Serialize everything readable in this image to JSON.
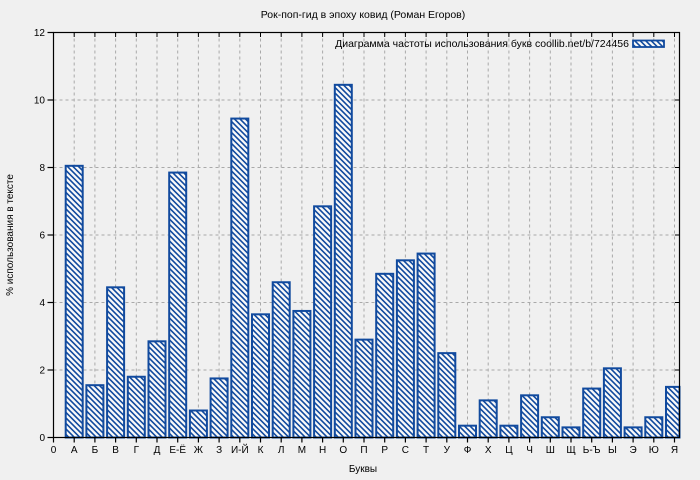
{
  "chart_data": {
    "type": "bar",
    "title": "Рок-поп-гид в эпоху ковид (Роман Егоров)",
    "legend_label": "Диаграмма частоты использования букв coollib.net/b/724456",
    "legend_position": "top-right-inside",
    "xlabel": "Буквы",
    "ylabel": "% использования в тексте",
    "x_origin_tick_label": "0",
    "ylim": [
      0,
      12
    ],
    "yticks": [
      0,
      2,
      4,
      6,
      8,
      10,
      12
    ],
    "grid": true,
    "bar_style": "blue-diagonal-hatch",
    "categories": [
      "А",
      "Б",
      "В",
      "Г",
      "Д",
      "Е-Ё",
      "Ж",
      "З",
      "И-Й",
      "К",
      "Л",
      "М",
      "Н",
      "О",
      "П",
      "Р",
      "С",
      "Т",
      "У",
      "Ф",
      "Х",
      "Ц",
      "Ч",
      "Ш",
      "Щ",
      "Ь-Ъ",
      "Ы",
      "Э",
      "Ю",
      "Я"
    ],
    "values": [
      8.05,
      1.55,
      4.45,
      1.8,
      2.85,
      7.85,
      0.8,
      1.75,
      9.45,
      3.65,
      4.6,
      3.75,
      6.85,
      10.45,
      2.9,
      4.85,
      5.25,
      5.45,
      2.5,
      0.35,
      1.1,
      0.35,
      1.25,
      0.6,
      0.3,
      1.45,
      2.05,
      0.3,
      0.6,
      1.5
    ]
  },
  "colors": {
    "background": "#f0f0f0",
    "bar_hatch": "#114a9e",
    "bar_fill": "#f9f9f9",
    "grid": "#a9a9a9",
    "frame": "#000000",
    "text": "#000000"
  }
}
